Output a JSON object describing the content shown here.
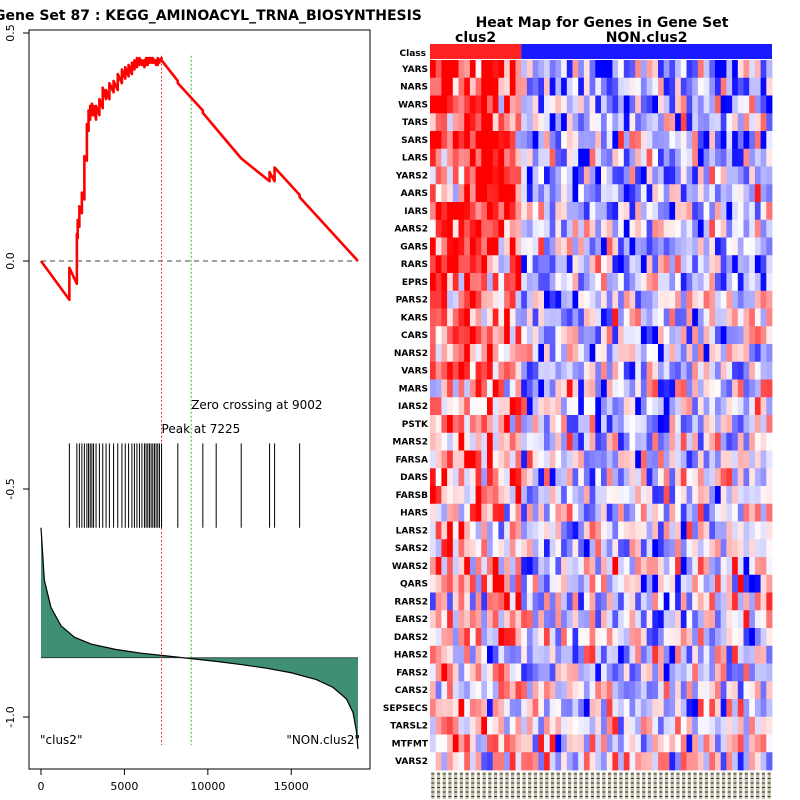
{
  "chart_data": [
    {
      "type": "line",
      "title": "Gene Set  87 : KEGG_AMINOACYL_TRNA_BIOSYNTHESIS",
      "xlabel": "",
      "ylabel": "",
      "xlim": [
        -1200,
        20000
      ],
      "ylim": [
        -1.1,
        0.5
      ],
      "x_ticks": [
        0,
        5000,
        10000,
        15000
      ],
      "x_tick_labels": [
        "0",
        "5000",
        "10000",
        "15000"
      ],
      "y_ticks": [
        0.5,
        0.0,
        -0.5,
        -1.0
      ],
      "y_tick_labels": [
        "0.5",
        "0.0",
        "-0.5",
        "-1.0"
      ],
      "series": [
        {
          "name": "running-enrichment-score",
          "color": "#ff0000",
          "x": [
            0,
            1700,
            1700,
            2150,
            2150,
            2200,
            2200,
            2300,
            2300,
            2450,
            2450,
            2600,
            2600,
            2750,
            2750,
            2850,
            2850,
            2950,
            2950,
            3050,
            3050,
            3150,
            3150,
            3300,
            3300,
            3500,
            3500,
            3700,
            3700,
            3900,
            3900,
            4100,
            4100,
            4350,
            4350,
            4600,
            4600,
            4850,
            4850,
            5050,
            5050,
            5250,
            5250,
            5450,
            5450,
            5600,
            5600,
            5750,
            5750,
            5900,
            5900,
            6050,
            6050,
            6200,
            6200,
            6300,
            6300,
            6400,
            6400,
            6500,
            6500,
            6600,
            6600,
            6700,
            6700,
            6800,
            6800,
            6900,
            6900,
            7000,
            7000,
            7100,
            7100,
            7225,
            7225,
            8200,
            8200,
            9700,
            9700,
            10500,
            10500,
            12000,
            12000,
            13700,
            13700,
            14000,
            14000,
            15500,
            15500,
            19000
          ],
          "y": [
            0.0,
            -0.085,
            -0.015,
            -0.05,
            0.06,
            0.05,
            0.09,
            0.075,
            0.12,
            0.105,
            0.15,
            0.135,
            0.23,
            0.22,
            0.3,
            0.285,
            0.33,
            0.31,
            0.34,
            0.32,
            0.345,
            0.32,
            0.34,
            0.31,
            0.34,
            0.32,
            0.355,
            0.335,
            0.38,
            0.355,
            0.375,
            0.355,
            0.39,
            0.37,
            0.395,
            0.375,
            0.41,
            0.39,
            0.42,
            0.4,
            0.425,
            0.405,
            0.43,
            0.41,
            0.435,
            0.42,
            0.44,
            0.425,
            0.445,
            0.43,
            0.445,
            0.43,
            0.44,
            0.425,
            0.44,
            0.43,
            0.445,
            0.43,
            0.445,
            0.435,
            0.445,
            0.435,
            0.445,
            0.435,
            0.445,
            0.435,
            0.44,
            0.43,
            0.44,
            0.43,
            0.445,
            0.435,
            0.44,
            0.445,
            0.44,
            0.395,
            0.39,
            0.33,
            0.325,
            0.29,
            0.29,
            0.225,
            0.225,
            0.175,
            0.195,
            0.175,
            0.205,
            0.145,
            0.14,
            0.0
          ]
        }
      ],
      "zero_line": 0.0,
      "peak": {
        "x": 7225,
        "label": "Peak at 7225",
        "color": "#dd3333"
      },
      "zero_crossing": {
        "x": 9002,
        "label": "Zero crossing at 9002",
        "color": "#33bb33"
      },
      "hits": [
        1700,
        2150,
        2300,
        2450,
        2600,
        2750,
        2850,
        2950,
        3050,
        3150,
        3300,
        3500,
        3700,
        3900,
        4100,
        4350,
        4600,
        4850,
        5050,
        5250,
        5450,
        5600,
        5750,
        5900,
        6050,
        6200,
        6300,
        6400,
        6500,
        6600,
        6700,
        6800,
        6900,
        7000,
        7100,
        7225,
        8200,
        9700,
        10500,
        12000,
        13700,
        14000,
        15500
      ],
      "hits_y_range": [
        -0.585,
        -0.4
      ],
      "ranked_metric": {
        "color": "#3f8f72",
        "baseline": -0.87,
        "x": [
          0,
          200,
          600,
          1200,
          2000,
          3000,
          4500,
          6000,
          7500,
          9000,
          10500,
          12000,
          13500,
          15000,
          16500,
          17500,
          18300,
          18700,
          18900,
          19000
        ],
        "y": [
          -0.585,
          -0.7,
          -0.76,
          -0.8,
          -0.825,
          -0.84,
          -0.852,
          -0.86,
          -0.866,
          -0.872,
          -0.878,
          -0.885,
          -0.893,
          -0.903,
          -0.918,
          -0.935,
          -0.96,
          -0.99,
          -1.03,
          -1.07
        ]
      },
      "legend": {
        "left": "\"clus2\"",
        "right": "\"NON.clus2\""
      }
    },
    {
      "type": "heatmap",
      "title": "Heat Map for Genes in Gene Set",
      "class_row_label": "Class",
      "classes": [
        {
          "name": "clus2",
          "count": 16,
          "color": "#ff2222"
        },
        {
          "name": "NON.clus2",
          "count": 44,
          "color": "#1a1aff"
        }
      ],
      "genes": [
        "YARS",
        "NARS",
        "WARS",
        "TARS",
        "SARS",
        "LARS",
        "YARS2",
        "AARS",
        "IARS",
        "AARS2",
        "GARS",
        "RARS",
        "EPRS",
        "PARS2",
        "KARS",
        "CARS",
        "NARS2",
        "VARS",
        "MARS",
        "IARS2",
        "PSTK",
        "MARS2",
        "FARSA",
        "DARS",
        "FARSB",
        "HARS",
        "LARS2",
        "SARS2",
        "WARS2",
        "QARS",
        "RARS2",
        "EARS2",
        "DARS2",
        "HARS2",
        "FARS2",
        "CARS2",
        "SEPSECS",
        "TARSL2",
        "MTFMT",
        "VARS2"
      ],
      "n_samples": 60,
      "color_low": "#0000ff",
      "color_mid": "#ffffff",
      "color_high": "#ff0000"
    }
  ]
}
